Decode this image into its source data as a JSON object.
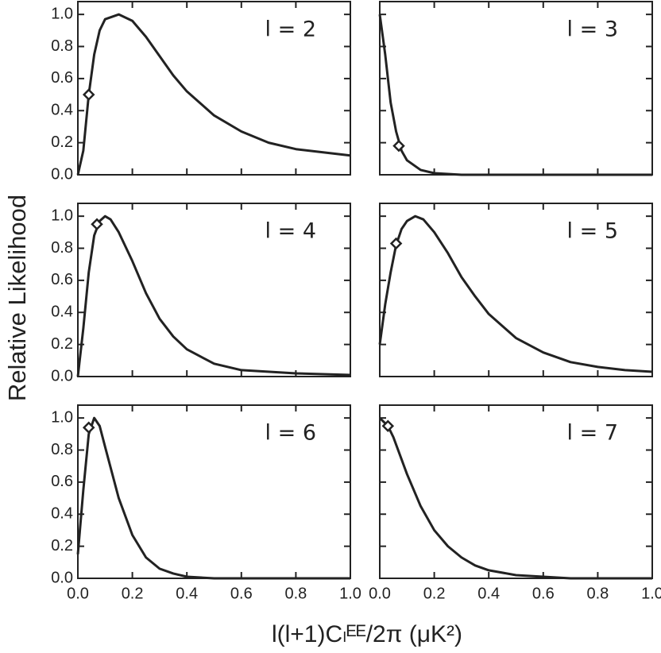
{
  "ylabel": "Relative Likelihood",
  "xlabel": "l(l+1)Cₗᴱᴱ/2π (μK²)",
  "xlim": [
    0,
    1.0
  ],
  "ylim": [
    0,
    1.08
  ],
  "xticks": [
    {
      "value": 0,
      "label": "0.0"
    },
    {
      "value": 0.2,
      "label": "0.2"
    },
    {
      "value": 0.4,
      "label": "0.4"
    },
    {
      "value": 0.6,
      "label": "0.6"
    },
    {
      "value": 0.8,
      "label": "0.8"
    },
    {
      "value": 1.0,
      "label": "1.0"
    }
  ],
  "yticks": [
    {
      "value": 0,
      "label": "0.0"
    },
    {
      "value": 0.2,
      "label": "0.2"
    },
    {
      "value": 0.4,
      "label": "0.4"
    },
    {
      "value": 0.6,
      "label": "0.6"
    },
    {
      "value": 0.8,
      "label": "0.8"
    },
    {
      "value": 1.0,
      "label": "1.0"
    }
  ],
  "chart_data": [
    {
      "type": "line",
      "title": "l = 2",
      "color": "#222222",
      "x": [
        0,
        0.02,
        0.04,
        0.06,
        0.08,
        0.1,
        0.15,
        0.2,
        0.25,
        0.3,
        0.35,
        0.4,
        0.5,
        0.6,
        0.7,
        0.8,
        0.9,
        1.0
      ],
      "values": [
        0,
        0.15,
        0.5,
        0.75,
        0.9,
        0.97,
        1.0,
        0.96,
        0.86,
        0.74,
        0.62,
        0.52,
        0.37,
        0.27,
        0.2,
        0.16,
        0.14,
        0.12
      ],
      "marker": {
        "x": 0.04,
        "y": 0.5
      }
    },
    {
      "type": "line",
      "title": "l = 3",
      "color": "#222222",
      "x": [
        0,
        0.02,
        0.04,
        0.06,
        0.08,
        0.1,
        0.15,
        0.2,
        0.3,
        1.0
      ],
      "values": [
        1.0,
        0.75,
        0.45,
        0.27,
        0.15,
        0.09,
        0.03,
        0.01,
        0,
        0
      ],
      "marker": {
        "x": 0.07,
        "y": 0.18
      }
    },
    {
      "type": "line",
      "title": "l = 4",
      "color": "#222222",
      "x": [
        0,
        0.02,
        0.04,
        0.06,
        0.08,
        0.1,
        0.12,
        0.15,
        0.2,
        0.25,
        0.3,
        0.35,
        0.4,
        0.5,
        0.6,
        0.8,
        1.0
      ],
      "values": [
        0,
        0.3,
        0.65,
        0.88,
        0.97,
        1.0,
        0.98,
        0.9,
        0.72,
        0.52,
        0.36,
        0.25,
        0.17,
        0.08,
        0.04,
        0.02,
        0.01
      ],
      "marker": {
        "x": 0.07,
        "y": 0.95
      }
    },
    {
      "type": "line",
      "title": "l = 5",
      "color": "#222222",
      "x": [
        0,
        0.02,
        0.04,
        0.06,
        0.08,
        0.1,
        0.13,
        0.16,
        0.2,
        0.25,
        0.3,
        0.35,
        0.4,
        0.5,
        0.6,
        0.7,
        0.8,
        0.9,
        1.0
      ],
      "values": [
        0.2,
        0.45,
        0.65,
        0.82,
        0.92,
        0.97,
        1.0,
        0.98,
        0.9,
        0.77,
        0.62,
        0.5,
        0.39,
        0.24,
        0.15,
        0.09,
        0.06,
        0.04,
        0.03
      ],
      "marker": {
        "x": 0.06,
        "y": 0.83
      }
    },
    {
      "type": "line",
      "title": "l = 6",
      "color": "#222222",
      "x": [
        0,
        0.02,
        0.04,
        0.06,
        0.08,
        0.1,
        0.15,
        0.2,
        0.25,
        0.3,
        0.35,
        0.4,
        0.5,
        1.0
      ],
      "values": [
        0.15,
        0.55,
        0.9,
        1.0,
        0.95,
        0.82,
        0.5,
        0.27,
        0.13,
        0.06,
        0.03,
        0.01,
        0,
        0
      ],
      "marker": {
        "x": 0.04,
        "y": 0.94
      }
    },
    {
      "type": "line",
      "title": "l = 7",
      "color": "#222222",
      "x": [
        0,
        0.03,
        0.05,
        0.1,
        0.15,
        0.2,
        0.25,
        0.3,
        0.35,
        0.4,
        0.5,
        0.6,
        0.7,
        1.0
      ],
      "values": [
        1.0,
        0.95,
        0.88,
        0.65,
        0.45,
        0.3,
        0.2,
        0.13,
        0.08,
        0.05,
        0.02,
        0.01,
        0,
        0
      ],
      "marker": {
        "x": 0.03,
        "y": 0.95
      }
    }
  ]
}
